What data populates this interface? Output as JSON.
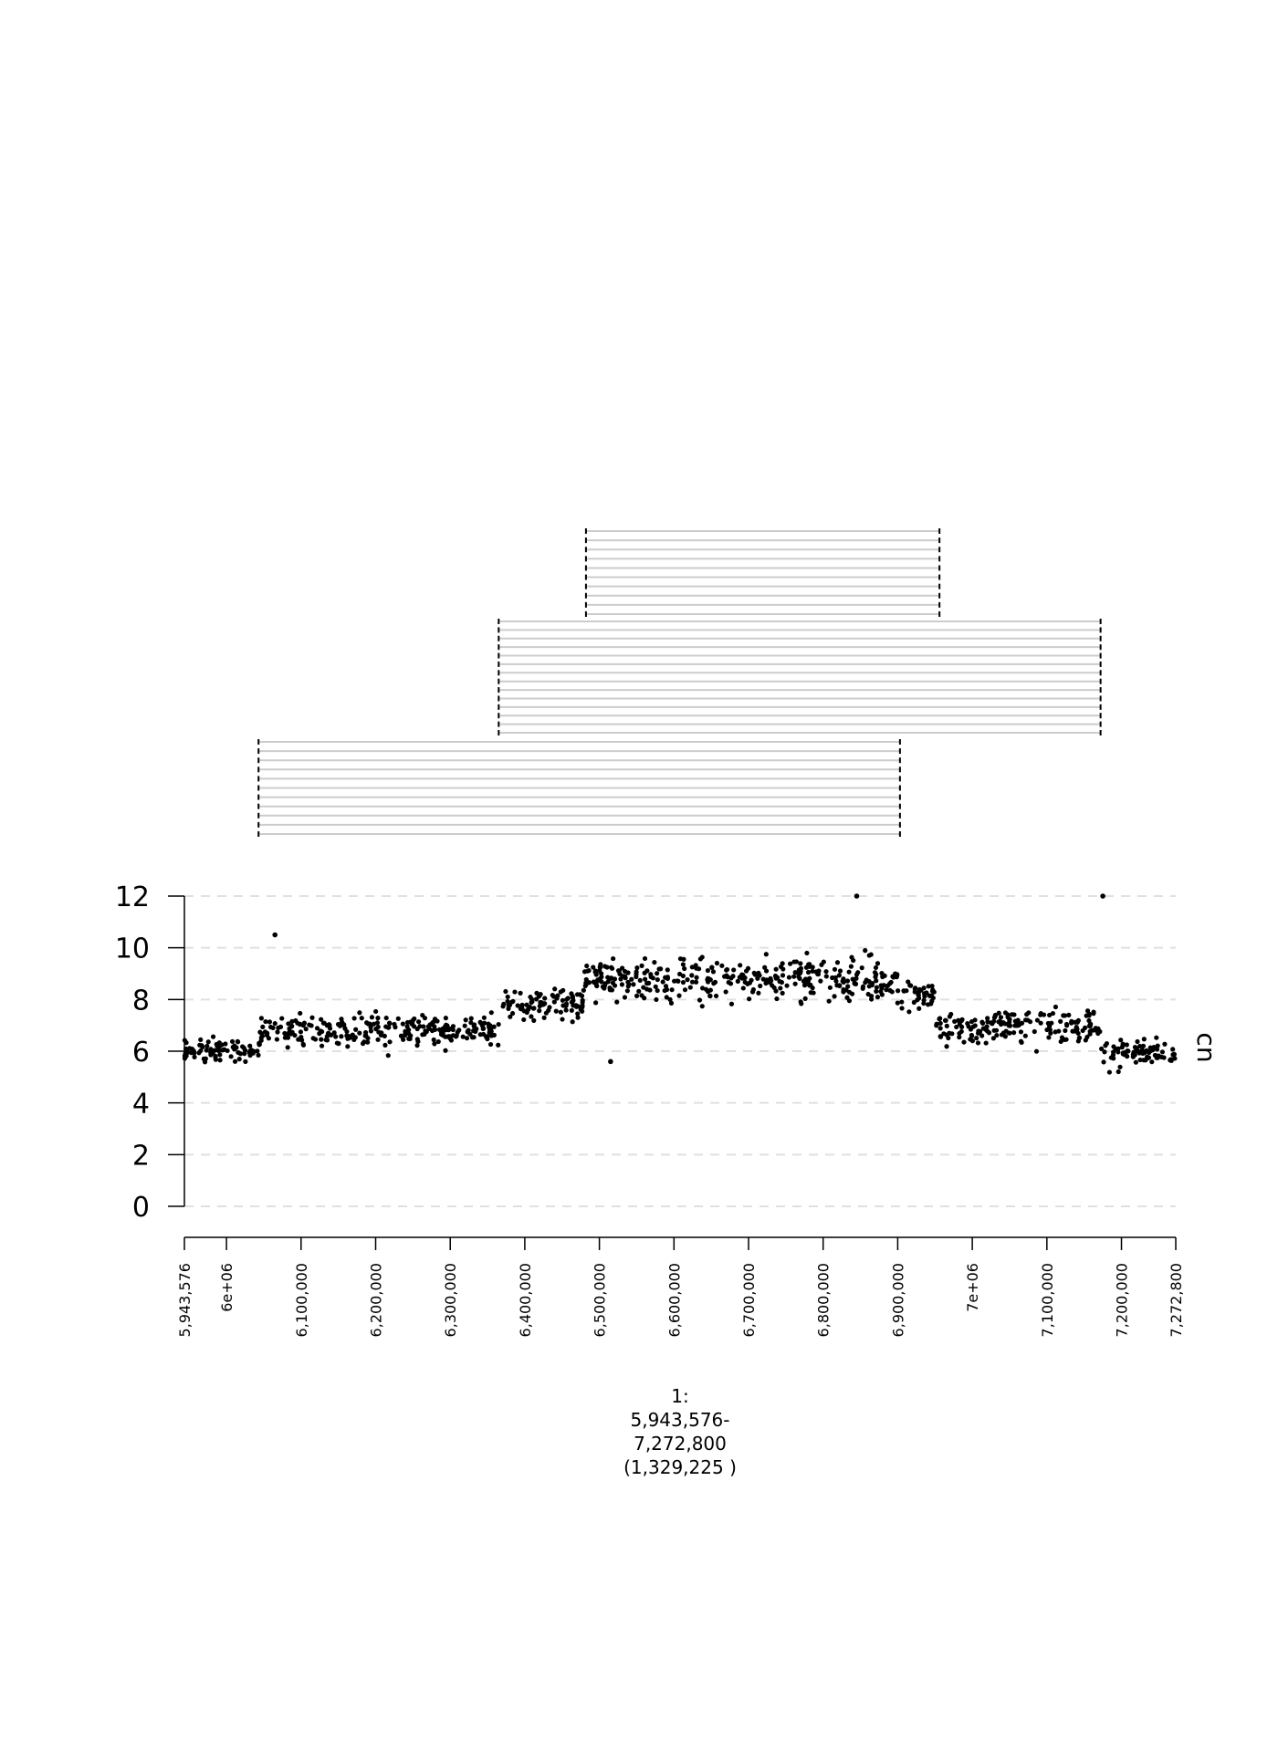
{
  "chart_data": {
    "type": "scatter",
    "title": "",
    "xlabel_lines": [
      "1:",
      "5,943,576-",
      "7,272,800",
      "(1,329,225 )"
    ],
    "ylabel": "cn",
    "xlim": [
      5943576,
      7272800
    ],
    "ylim": [
      0,
      12
    ],
    "y_ticks": [
      0,
      2,
      4,
      6,
      8,
      10,
      12
    ],
    "y_gridlines": true,
    "x_ticks": [
      {
        "value": 5943576,
        "label": "5,943,576"
      },
      {
        "value": 6000000,
        "label": "6e+06"
      },
      {
        "value": 6100000,
        "label": "6,100,000"
      },
      {
        "value": 6200000,
        "label": "6,200,000"
      },
      {
        "value": 6300000,
        "label": "6,300,000"
      },
      {
        "value": 6400000,
        "label": "6,400,000"
      },
      {
        "value": 6500000,
        "label": "6,500,000"
      },
      {
        "value": 6600000,
        "label": "6,600,000"
      },
      {
        "value": 6700000,
        "label": "6,700,000"
      },
      {
        "value": 6800000,
        "label": "6,800,000"
      },
      {
        "value": 6900000,
        "label": "6,900,000"
      },
      {
        "value": 7000000,
        "label": "7e+06"
      },
      {
        "value": 7100000,
        "label": "7,100,000"
      },
      {
        "value": 7200000,
        "label": "7,200,000"
      },
      {
        "value": 7272800,
        "label": "7,272,800"
      }
    ],
    "segments": [
      {
        "x": [
          5943576,
          6043000
        ],
        "mean": 6.0,
        "sd": 0.32
      },
      {
        "x": [
          6043000,
          6365000
        ],
        "mean": 6.8,
        "sd": 0.42
      },
      {
        "x": [
          6365000,
          6480000
        ],
        "mean": 7.8,
        "sd": 0.4
      },
      {
        "x": [
          6480000,
          6900000
        ],
        "mean": 8.8,
        "sd": 0.55
      },
      {
        "x": [
          6900000,
          6950000
        ],
        "mean": 8.2,
        "sd": 0.35
      },
      {
        "x": [
          6950000,
          7172000
        ],
        "mean": 7.0,
        "sd": 0.42
      },
      {
        "x": [
          7172000,
          7272800
        ],
        "mean": 5.9,
        "sd": 0.35
      }
    ],
    "outliers": [
      {
        "x": 6065000,
        "y": 10.5
      },
      {
        "x": 6515000,
        "y": 5.6
      },
      {
        "x": 6845000,
        "y": 12
      },
      {
        "x": 7175000,
        "y": 12
      }
    ],
    "point_count": 1100,
    "intervals": [
      {
        "group": "top",
        "start": 6482000,
        "end": 6956000,
        "count": 10
      },
      {
        "group": "middle",
        "start": 6365000,
        "end": 7172000,
        "count": 14
      },
      {
        "group": "bottom",
        "start": 6043000,
        "end": 6903000,
        "count": 11
      }
    ],
    "point_color": "#000000",
    "interval_color": "#cccccc",
    "grid_color": "#e0e0e0"
  }
}
